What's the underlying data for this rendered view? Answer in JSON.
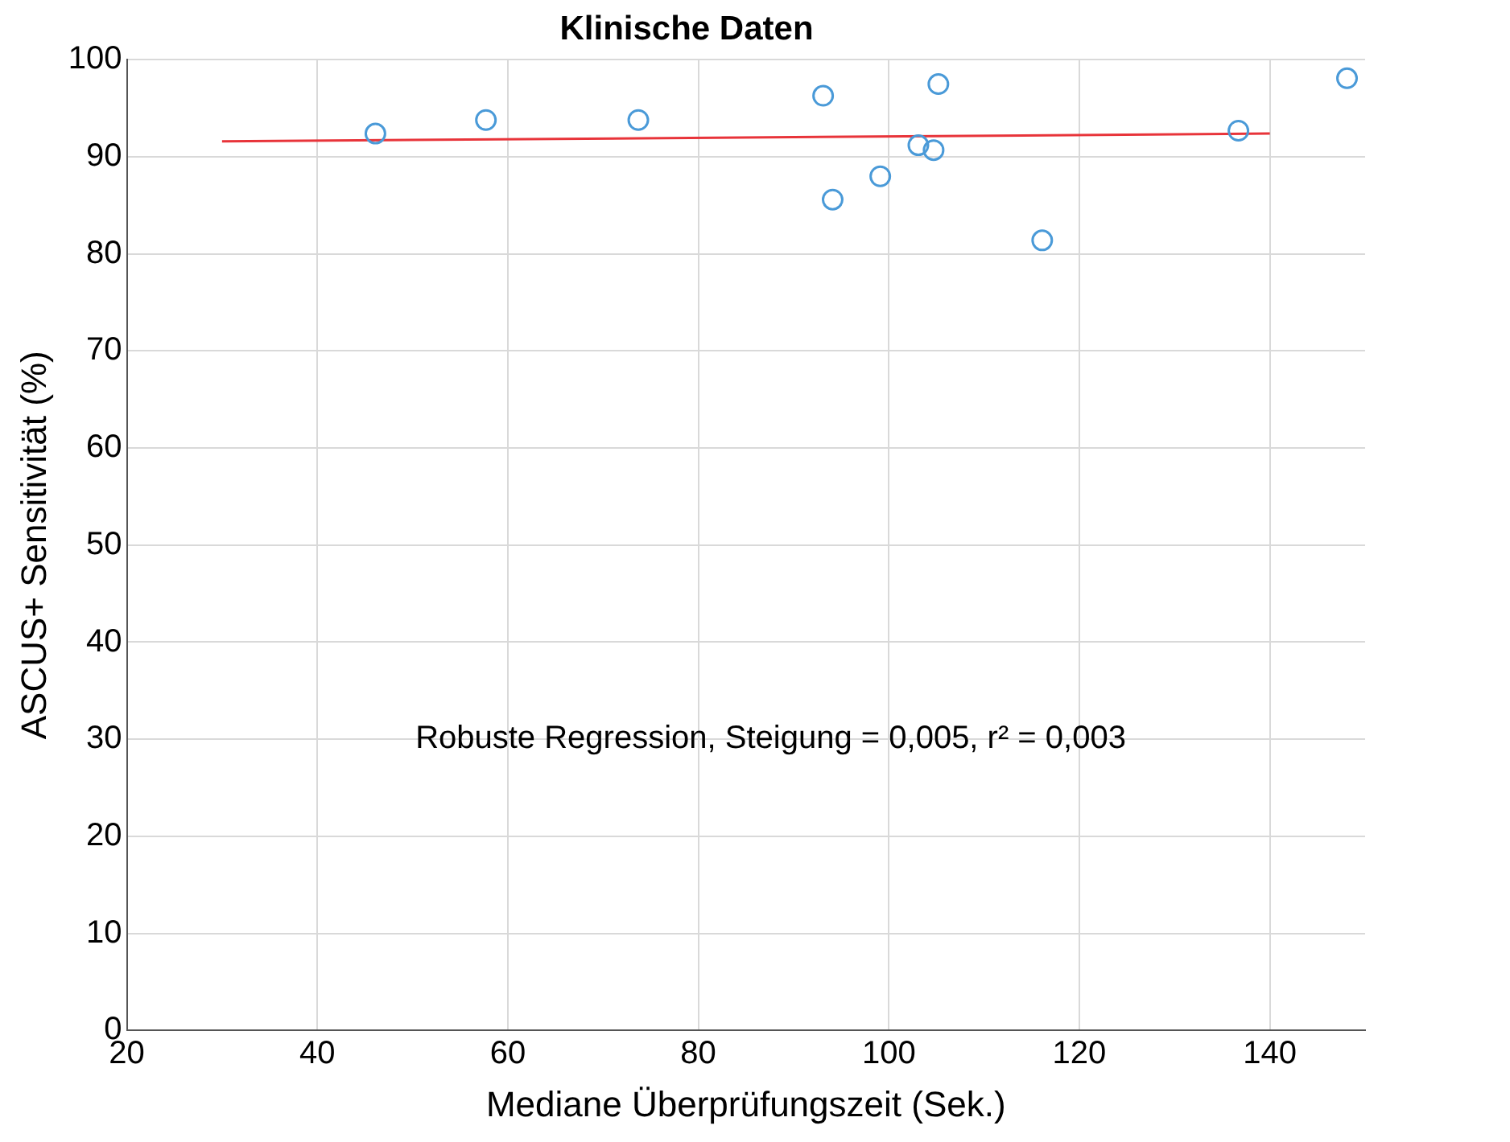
{
  "chart_data": {
    "type": "scatter",
    "title": "Klinische Daten",
    "xlabel": "Mediane Überprüfungszeit (Sek.)",
    "ylabel": "ASCUS+ Sensitivität (%)",
    "annotations": [
      "Robuste Regression, Steigung = 0,005, r² = 0,003"
    ],
    "series": [
      {
        "type": "scatter",
        "color": "#4a9ad8",
        "marker": "circle",
        "x": [
          46.1,
          57.7,
          73.7,
          93.1,
          94.1,
          99.1,
          103.1,
          104.7,
          105.2,
          116.1,
          136.7,
          148.1
        ],
        "values": [
          92.4,
          93.8,
          93.8,
          96.3,
          85.6,
          88.0,
          91.2,
          90.7,
          97.5,
          81.4,
          92.7,
          98.1
        ]
      },
      {
        "type": "line",
        "color": "#e8343a",
        "marker": "none",
        "line_style": "solid",
        "x": [
          30,
          140
        ],
        "values": [
          91.6,
          92.4
        ]
      }
    ],
    "xlim": [
      20,
      150
    ],
    "xticks": [
      20,
      40,
      60,
      80,
      100,
      120,
      140
    ],
    "ylim": [
      0,
      100
    ],
    "yticks": [
      0,
      10,
      20,
      30,
      40,
      50,
      60,
      70,
      80,
      90,
      100
    ],
    "grid": true,
    "legend": false
  }
}
